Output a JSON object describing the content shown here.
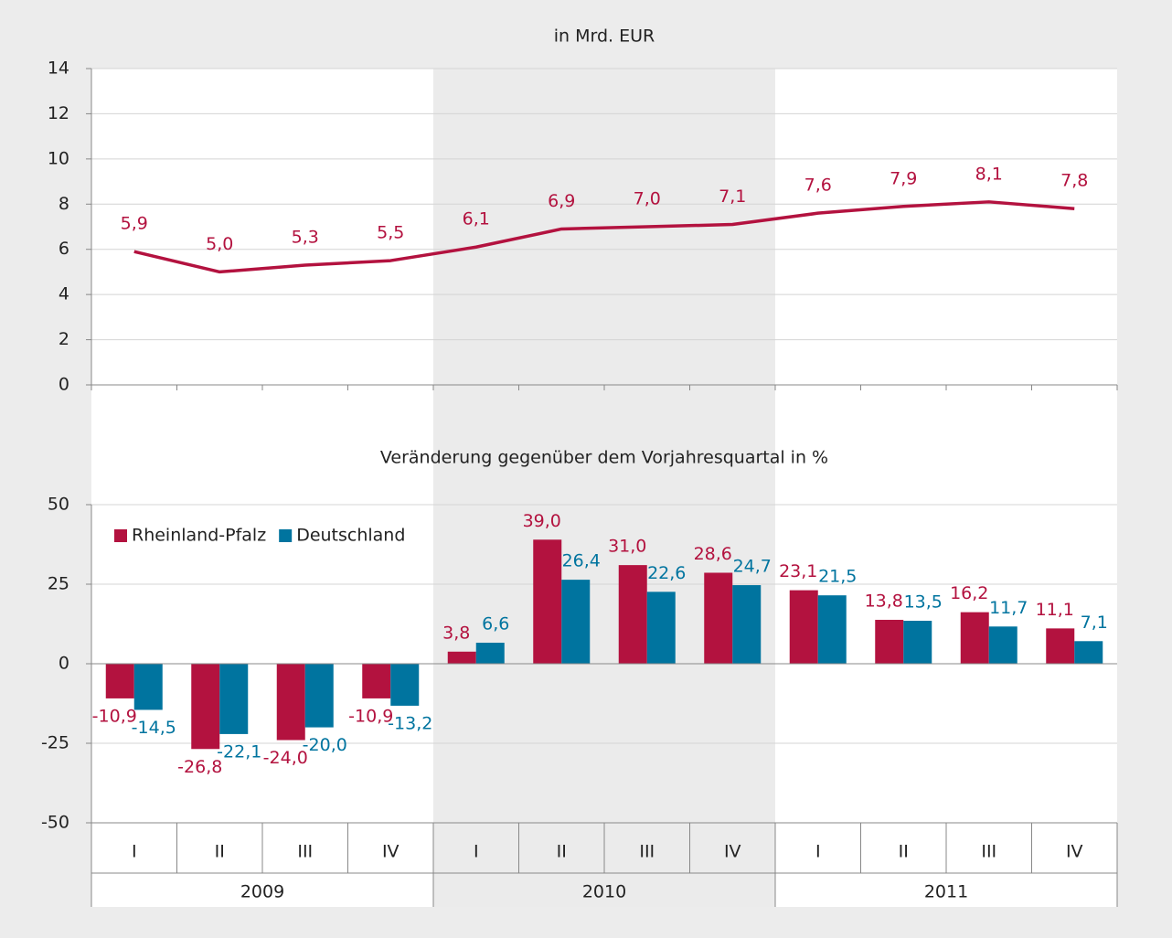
{
  "chart_data": [
    {
      "type": "line",
      "title": "in Mrd. EUR",
      "values": [
        5.9,
        5.0,
        5.3,
        5.5,
        6.1,
        6.9,
        7.0,
        7.1,
        7.6,
        7.9,
        8.1,
        7.8
      ],
      "value_labels": [
        "5,9",
        "5,0",
        "5,3",
        "5,5",
        "6,1",
        "6,9",
        "7,0",
        "7,1",
        "7,6",
        "7,9",
        "8,1",
        "7,8"
      ],
      "color": "#b3123f",
      "ylim": [
        0,
        14
      ],
      "yticks": [
        0,
        2,
        4,
        6,
        8,
        10,
        12,
        14
      ],
      "grid": true
    },
    {
      "type": "bar",
      "title": "Veränderung gegenüber dem Vorjahresquartal in %",
      "categories": [
        "I",
        "II",
        "III",
        "IV",
        "I",
        "II",
        "III",
        "IV",
        "I",
        "II",
        "III",
        "IV"
      ],
      "groups": [
        "2009",
        "2010",
        "2011"
      ],
      "series": [
        {
          "name": "Rheinland-Pfalz",
          "color": "#b3123f",
          "values": [
            -10.9,
            -26.8,
            -24.0,
            -10.9,
            3.8,
            39.0,
            31.0,
            28.6,
            23.1,
            13.8,
            16.2,
            11.1
          ],
          "value_labels": [
            "-10,9",
            "-26,8",
            "-24,0",
            "-10,9",
            "3,8",
            "39,0",
            "31,0",
            "28,6",
            "23,1",
            "13,8",
            "16,2",
            "11,1"
          ]
        },
        {
          "name": "Deutschland",
          "color": "#00749f",
          "values": [
            -14.5,
            -22.1,
            -20.0,
            -13.2,
            6.6,
            26.4,
            22.6,
            24.7,
            21.5,
            13.5,
            11.7,
            7.1
          ],
          "value_labels": [
            "-14,5",
            "-22,1",
            "-20,0",
            "-13,2",
            "6,6",
            "26,4",
            "22,6",
            "24,7",
            "21,5",
            "13,5",
            "11,7",
            "7,1"
          ]
        }
      ],
      "ylim": [
        -50,
        50
      ],
      "yticks": [
        -50,
        -25,
        0,
        25,
        50
      ],
      "grid": true,
      "legend": "upper left"
    }
  ]
}
